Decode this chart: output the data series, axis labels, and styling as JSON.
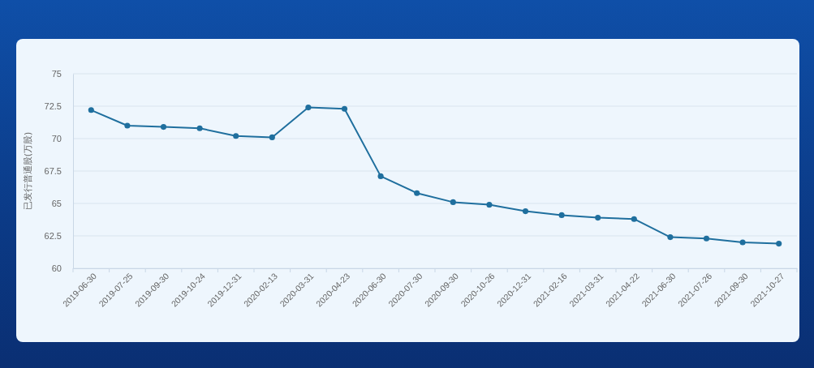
{
  "chart_data": {
    "type": "line",
    "ylabel": "已发行普通股(万股)",
    "categories": [
      "2019-06-30",
      "2019-07-25",
      "2019-09-30",
      "2019-10-24",
      "2019-12-31",
      "2020-02-13",
      "2020-03-31",
      "2020-04-23",
      "2020-06-30",
      "2020-07-30",
      "2020-09-30",
      "2020-10-26",
      "2020-12-31",
      "2021-02-16",
      "2021-03-31",
      "2021-04-22",
      "2021-06-30",
      "2021-07-26",
      "2021-09-30",
      "2021-10-27"
    ],
    "series": [
      {
        "color": "#1f6f9e",
        "values": [
          72.2,
          71.0,
          70.9,
          70.8,
          70.2,
          70.1,
          72.4,
          72.3,
          67.1,
          65.8,
          65.1,
          64.9,
          64.4,
          64.1,
          63.9,
          63.8,
          62.4,
          62.3,
          62.0,
          61.9
        ]
      }
    ],
    "ylim": [
      60,
      75
    ],
    "yticks": [
      60,
      62.5,
      65,
      67.5,
      70,
      72.5,
      75
    ],
    "grid": "y",
    "marker": "circle",
    "line_style": "solid"
  }
}
